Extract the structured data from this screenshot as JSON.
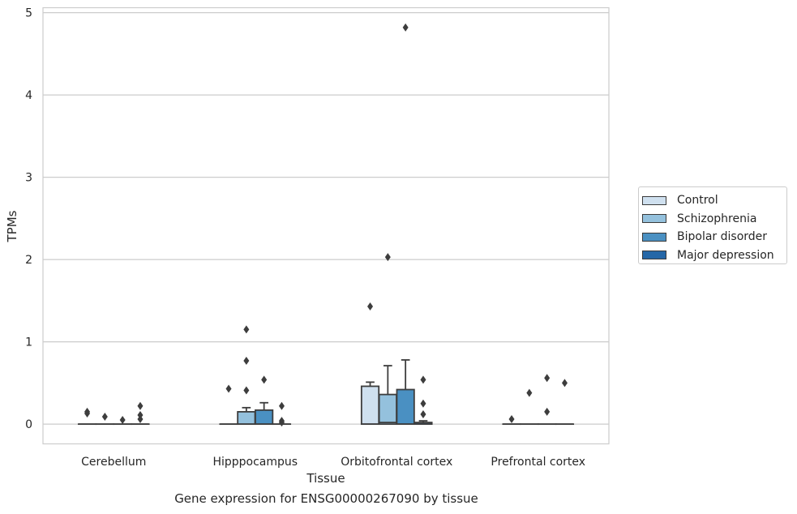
{
  "caption": "Gene expression for ENSG00000267090 by tissue",
  "legend": {
    "items": [
      {
        "label": "Control",
        "color": "#cfe0ef"
      },
      {
        "label": "Schizophrenia",
        "color": "#94c1dd"
      },
      {
        "label": "Bipolar disorder",
        "color": "#4a90c2"
      },
      {
        "label": "Major depression",
        "color": "#2567a7"
      }
    ],
    "placement": "right-outside"
  },
  "chart_data": {
    "type": "box",
    "xlabel": "Tissue",
    "ylabel": "TPMs",
    "categories": [
      "Cerebellum",
      "Hipppocampus",
      "Orbitofrontal cortex",
      "Prefrontal cortex"
    ],
    "ylim": [
      -0.24,
      5.06
    ],
    "yticks": [
      0,
      1,
      2,
      3,
      4,
      5
    ],
    "grid": "horizontal",
    "series": [
      {
        "name": "Control",
        "color": "#cfe0ef",
        "boxes": [
          {
            "q1": 0,
            "median": 0,
            "q3": 0,
            "whisker_low": 0,
            "whisker_high": 0,
            "outliers": [
              0.15,
              0.13
            ]
          },
          {
            "q1": 0,
            "median": 0,
            "q3": 0,
            "whisker_low": 0,
            "whisker_high": 0,
            "outliers": [
              0.43
            ]
          },
          {
            "q1": 0,
            "median": 0,
            "q3": 0.46,
            "whisker_low": 0,
            "whisker_high": 0.51,
            "outliers": [
              1.43
            ]
          },
          {
            "q1": 0,
            "median": 0,
            "q3": 0,
            "whisker_low": 0,
            "whisker_high": 0,
            "outliers": [
              0.06
            ]
          }
        ]
      },
      {
        "name": "Schizophrenia",
        "color": "#94c1dd",
        "boxes": [
          {
            "q1": 0,
            "median": 0,
            "q3": 0,
            "whisker_low": 0,
            "whisker_high": 0,
            "outliers": [
              0.09
            ]
          },
          {
            "q1": 0,
            "median": 0,
            "q3": 0.15,
            "whisker_low": 0,
            "whisker_high": 0.2,
            "outliers": [
              1.15,
              0.77,
              0.41
            ]
          },
          {
            "q1": 0,
            "median": 0.02,
            "q3": 0.36,
            "whisker_low": 0,
            "whisker_high": 0.71,
            "outliers": [
              2.03
            ]
          },
          {
            "q1": 0,
            "median": 0,
            "q3": 0,
            "whisker_low": 0,
            "whisker_high": 0,
            "outliers": [
              0.38
            ]
          }
        ]
      },
      {
        "name": "Bipolar disorder",
        "color": "#4a90c2",
        "boxes": [
          {
            "q1": 0,
            "median": 0,
            "q3": 0,
            "whisker_low": 0,
            "whisker_high": 0,
            "outliers": [
              0.05
            ]
          },
          {
            "q1": 0,
            "median": 0,
            "q3": 0.17,
            "whisker_low": 0,
            "whisker_high": 0.26,
            "outliers": [
              0.54
            ]
          },
          {
            "q1": 0,
            "median": 0,
            "q3": 0.42,
            "whisker_low": 0,
            "whisker_high": 0.78,
            "outliers": [
              4.82
            ]
          },
          {
            "q1": 0,
            "median": 0,
            "q3": 0,
            "whisker_low": 0,
            "whisker_high": 0,
            "outliers": [
              0.56,
              0.15
            ]
          }
        ]
      },
      {
        "name": "Major depression",
        "color": "#2567a7",
        "boxes": [
          {
            "q1": 0,
            "median": 0,
            "q3": 0,
            "whisker_low": 0,
            "whisker_high": 0,
            "outliers": [
              0.22,
              0.11,
              0.06
            ]
          },
          {
            "q1": 0,
            "median": 0,
            "q3": 0,
            "whisker_low": 0,
            "whisker_high": 0,
            "outliers": [
              0.22,
              0.04,
              0.02
            ]
          },
          {
            "q1": 0,
            "median": 0,
            "q3": 0.02,
            "whisker_low": 0,
            "whisker_high": 0.04,
            "outliers": [
              0.54,
              0.25,
              0.12
            ]
          },
          {
            "q1": 0,
            "median": 0,
            "q3": 0,
            "whisker_low": 0,
            "whisker_high": 0,
            "outliers": [
              0.5
            ]
          }
        ]
      }
    ]
  }
}
